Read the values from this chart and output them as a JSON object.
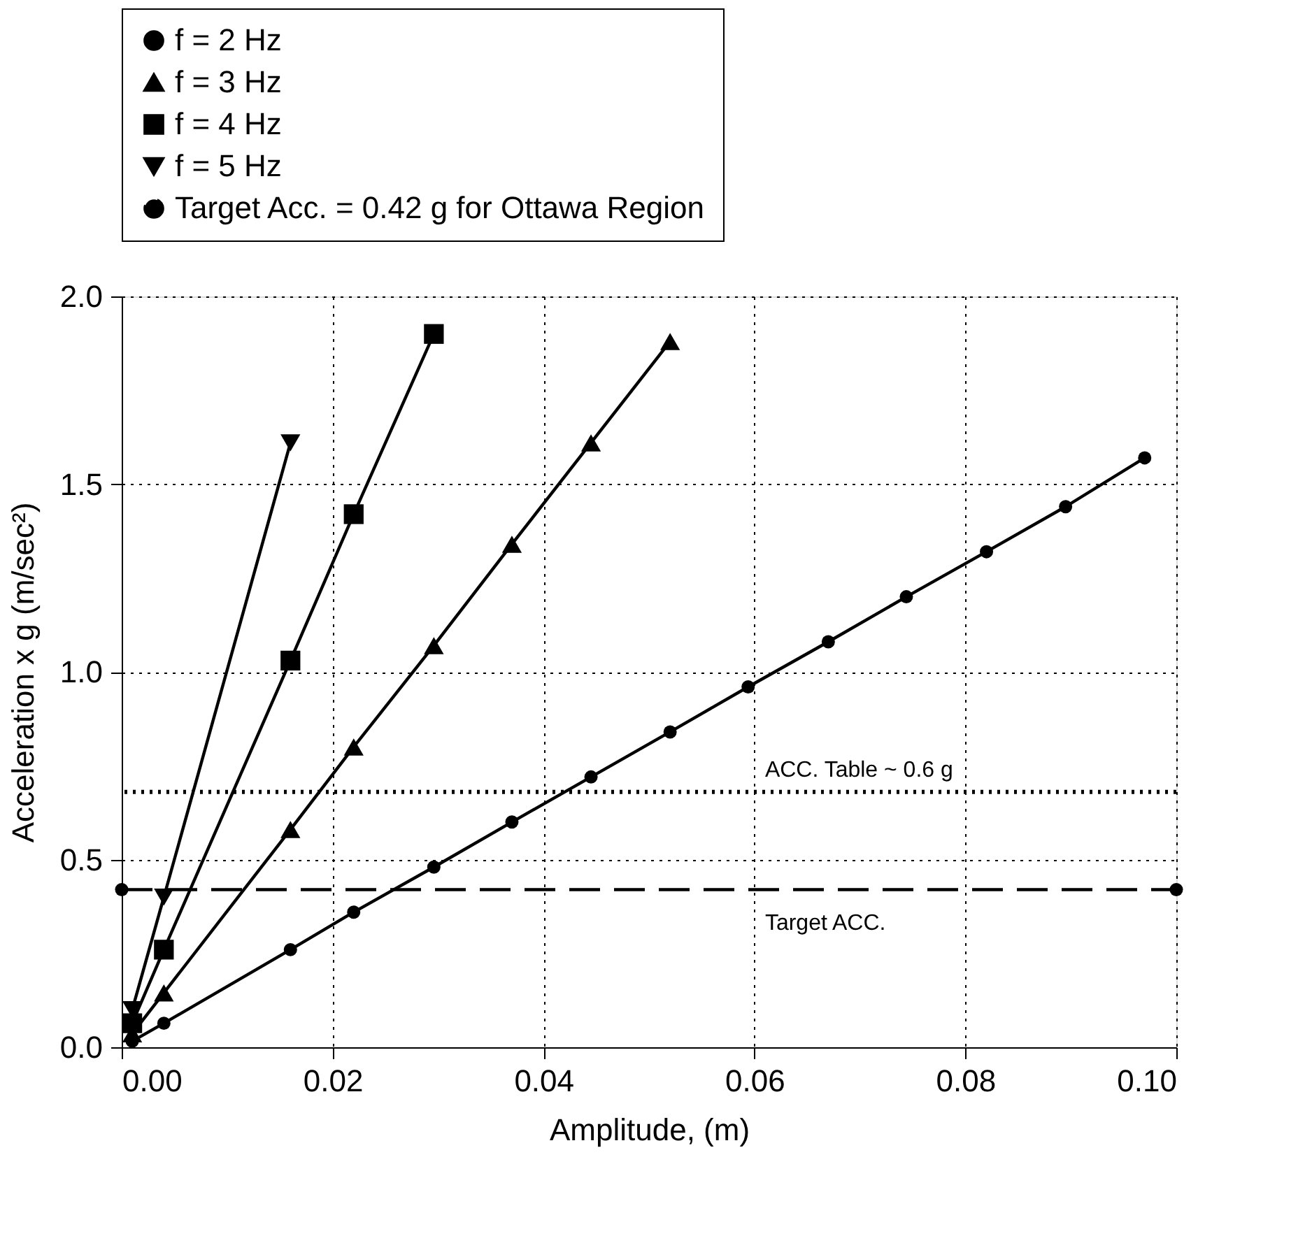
{
  "chart_data": {
    "type": "line",
    "xlabel": "Amplitude, (m)",
    "ylabel": "Acceleration x g (m/sec²)",
    "xlim": [
      0,
      0.1
    ],
    "ylim": [
      0,
      2
    ],
    "xticks": [
      {
        "value": 0,
        "label": "0.00"
      },
      {
        "value": 0.02,
        "label": "0.02"
      },
      {
        "value": 0.04,
        "label": "0.04"
      },
      {
        "value": 0.06,
        "label": "0.06"
      },
      {
        "value": 0.08,
        "label": "0.08"
      },
      {
        "value": 0.1,
        "label": "0.10"
      }
    ],
    "yticks": [
      {
        "value": 0,
        "label": "0.0"
      },
      {
        "value": 0.5,
        "label": "0.5"
      },
      {
        "value": 1,
        "label": "1.0"
      },
      {
        "value": 1.5,
        "label": "1.5"
      },
      {
        "value": 2,
        "label": "2.0"
      }
    ],
    "grid": true,
    "legend": "top",
    "line_style": "solid",
    "series": [
      {
        "name": "f = 2 Hz",
        "color": "#000000",
        "marker": "circle",
        "x": [
          0.001,
          0.004,
          0.016,
          0.022,
          0.0296,
          0.037,
          0.0445,
          0.052,
          0.0594,
          0.067,
          0.0744,
          0.082,
          0.0895,
          0.097
        ],
        "values": [
          0.016,
          0.064,
          0.26,
          0.36,
          0.48,
          0.6,
          0.72,
          0.84,
          0.96,
          1.08,
          1.2,
          1.32,
          1.44,
          1.57
        ]
      },
      {
        "name": "f = 3 Hz",
        "color": "#000000",
        "marker": "triangle",
        "x": [
          0.001,
          0.004,
          0.016,
          0.022,
          0.0296,
          0.037,
          0.0445,
          0.052
        ],
        "values": [
          0.036,
          0.145,
          0.58,
          0.8,
          1.07,
          1.34,
          1.61,
          1.88
        ]
      },
      {
        "name": "f = 4 Hz",
        "color": "#000000",
        "marker": "square",
        "x": [
          0.001,
          0.004,
          0.016,
          0.022,
          0.0296
        ],
        "values": [
          0.064,
          0.26,
          1.03,
          1.42,
          1.9
        ]
      },
      {
        "name": "f = 5 Hz",
        "color": "#000000",
        "marker": "triangle-down",
        "x": [
          0.001,
          0.004,
          0.016
        ],
        "values": [
          0.1,
          0.4,
          1.61
        ]
      },
      {
        "name": "Target Acc. = 0.42 g for Ottawa Region",
        "color": "#000000",
        "marker": "circle",
        "line_style": "dashed",
        "x": [
          0,
          0.1
        ],
        "values": [
          0.42,
          0.42
        ]
      }
    ],
    "ref_lines": [
      {
        "axis": "y",
        "value": 0.68,
        "label": "ACC. Table ~ 0.6 g",
        "line_style": "dotted",
        "color": "#000000"
      }
    ],
    "annotations": [
      {
        "text": "Target ACC.",
        "x": 0.061,
        "y": 0.42
      }
    ]
  }
}
